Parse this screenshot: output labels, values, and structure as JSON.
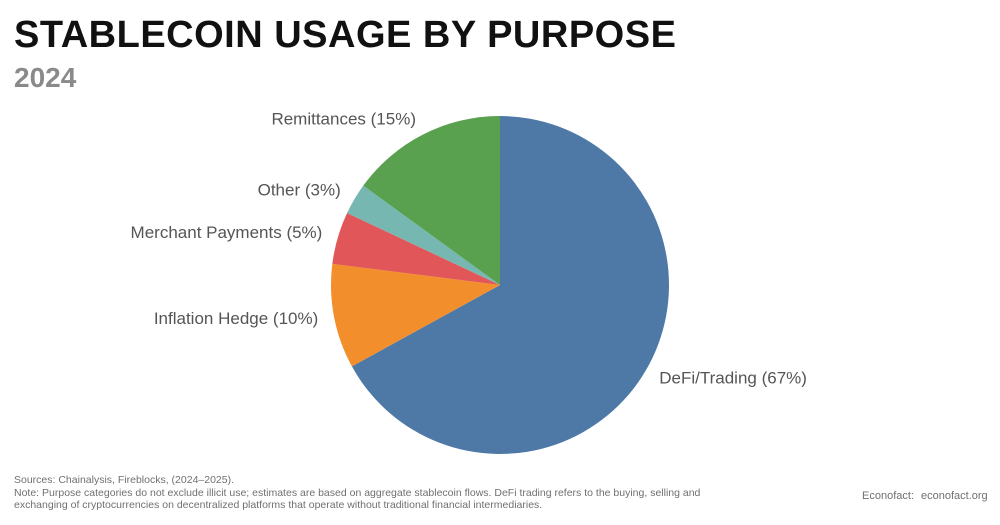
{
  "header": {
    "title": "STABLECOIN USAGE BY PURPOSE",
    "subtitle": "2024"
  },
  "chart_data": {
    "type": "pie",
    "title": "STABLECOIN USAGE BY PURPOSE",
    "subtitle": "2024",
    "start_angle_deg": 0,
    "direction": "clockwise",
    "slices": [
      {
        "label": "DeFi/Trading (67%)",
        "category": "DeFi/Trading",
        "value": 67,
        "color": "#4e79a7"
      },
      {
        "label": "Inflation Hedge (10%)",
        "category": "Inflation Hedge",
        "value": 10,
        "color": "#f28e2b"
      },
      {
        "label": "Merchant Payments (5%)",
        "category": "Merchant Payments",
        "value": 5,
        "color": "#e15759"
      },
      {
        "label": "Other (3%)",
        "category": "Other",
        "value": 3,
        "color": "#76b7b2"
      },
      {
        "label": "Remittances (15%)",
        "category": "Remittances",
        "value": 15,
        "color": "#59a14f"
      }
    ]
  },
  "footer": {
    "sources": "Sources: Chainalysis, Fireblocks, (2024–2025).",
    "note_line1": "Note: Purpose categories do not exclude illicit use; estimates are based on aggregate stablecoin flows. DeFi trading refers to the buying, selling and",
    "note_line2": "exchanging of cryptocurrencies on decentralized platforms that operate without traditional financial intermediaries.",
    "brand_label": "Econofact:",
    "brand_url": "econofact.org"
  }
}
